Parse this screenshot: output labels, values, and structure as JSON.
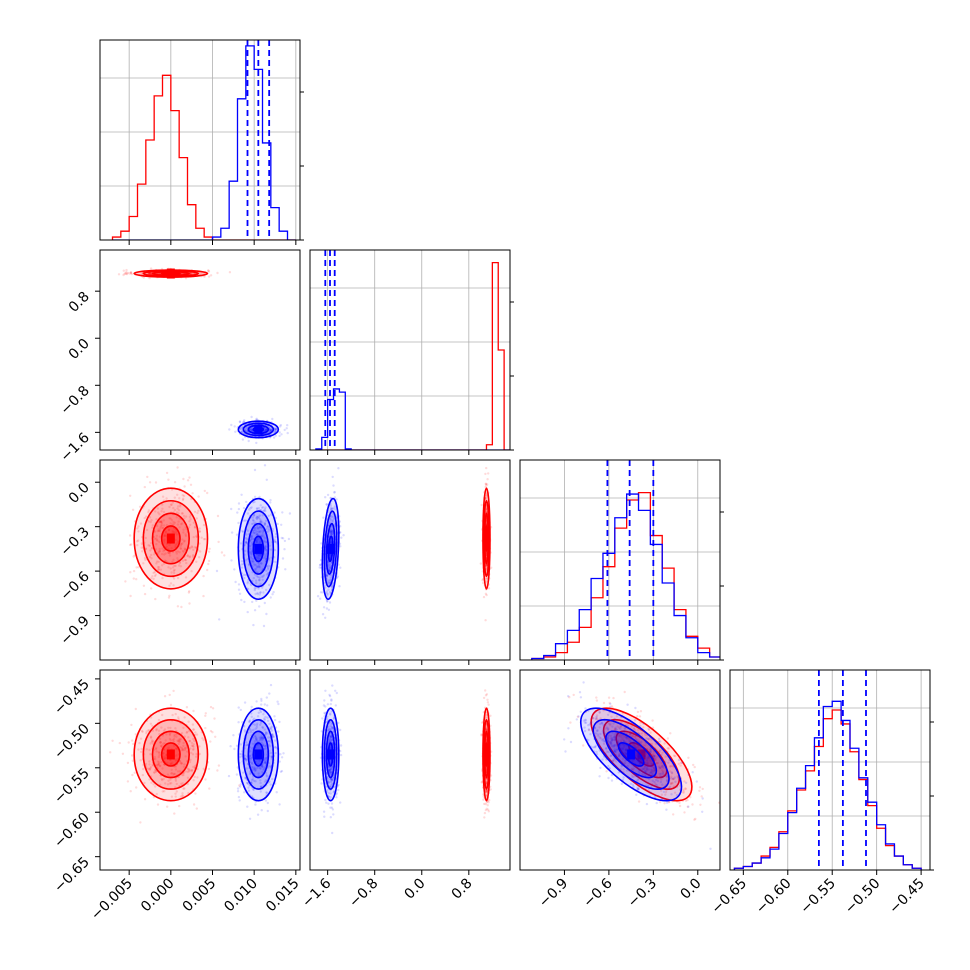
{
  "chart_data": {
    "type": "corner",
    "title": "",
    "colors": {
      "series_a": "#ff0000",
      "series_b": "#0000ff",
      "grid": "#b0b0b0",
      "axes": "#000000"
    },
    "grid": true,
    "parameters": [
      {
        "range": [
          -0.0085,
          0.0155
        ],
        "ticks": [
          "-0.005",
          "0.000",
          "0.005",
          "0.010",
          "0.015"
        ],
        "tick_values": [
          -0.005,
          0.0,
          0.005,
          0.01,
          0.015
        ]
      },
      {
        "range": [
          -1.9,
          1.5
        ],
        "ticks": [
          "-1.6",
          "-0.8",
          "0.0",
          "0.8"
        ],
        "tick_values": [
          -1.6,
          -0.8,
          0.0,
          0.8
        ]
      },
      {
        "range": [
          -1.2,
          0.15
        ],
        "ticks": [
          "-0.9",
          "-0.6",
          "-0.3",
          "0.0"
        ],
        "tick_values": [
          -0.9,
          -0.6,
          -0.3,
          0.0
        ]
      },
      {
        "range": [
          -0.665,
          -0.44
        ],
        "ticks": [
          "-0.65",
          "-0.60",
          "-0.55",
          "-0.50",
          "-0.45"
        ],
        "tick_values": [
          -0.65,
          -0.6,
          -0.55,
          -0.5,
          -0.45
        ]
      }
    ],
    "series": [
      {
        "color_key": "series_a",
        "mean": [
          0.0,
          1.1,
          -0.38,
          -0.535
        ],
        "std": [
          0.0022,
          0.03,
          0.17,
          0.026
        ],
        "corr_23": 0.0,
        "corr_34": -0.7
      },
      {
        "color_key": "series_b",
        "mean": [
          0.0105,
          -1.55,
          -0.45,
          -0.535
        ],
        "std": [
          0.0012,
          0.07,
          0.17,
          0.026
        ],
        "corr_23": 0.3,
        "corr_34": -0.7
      }
    ],
    "quantile_lines": [
      [
        0.0092,
        0.0105,
        0.0118
      ],
      [
        -1.64,
        -1.56,
        -1.48
      ],
      [
        -0.61,
        -0.46,
        -0.3
      ],
      [
        -0.565,
        -0.538,
        -0.512
      ]
    ],
    "histograms": [
      {
        "bins": [
          -0.007,
          -0.006,
          -0.005,
          -0.004,
          -0.003,
          -0.002,
          -0.001,
          0.0,
          0.001,
          0.002,
          0.003,
          0.004,
          0.005,
          0.006,
          0.007,
          0.008,
          0.009,
          0.01,
          0.011,
          0.012,
          0.013,
          0.014,
          0.015
        ],
        "series_a": [
          1,
          3,
          8,
          19,
          34,
          49,
          56,
          44,
          28,
          12,
          4,
          1,
          0,
          0,
          0,
          0,
          0,
          0,
          0,
          0,
          0,
          0
        ],
        "series_b": [
          0,
          0,
          0,
          0,
          0,
          0,
          0,
          0,
          0,
          0,
          0,
          0,
          1,
          4,
          20,
          48,
          66,
          58,
          33,
          11,
          3,
          0
        ],
        "ymax": 68
      },
      {
        "bins": [
          -1.8,
          -1.7,
          -1.6,
          -1.5,
          -1.4,
          -1.3,
          -1.2,
          -1.1,
          -1.0,
          -0.9,
          -0.8,
          -0.7,
          -0.6,
          -0.5,
          -0.4,
          -0.3,
          -0.2,
          -0.1,
          0.0,
          0.1,
          0.2,
          0.3,
          0.4,
          0.5,
          0.6,
          0.7,
          0.8,
          0.9,
          1.0,
          1.1,
          1.2,
          1.3,
          1.4,
          1.5
        ],
        "series_a": [
          0,
          0,
          0,
          0,
          0,
          0,
          0,
          0,
          0,
          0,
          0,
          0,
          0,
          0,
          0,
          0,
          0,
          0,
          0,
          0,
          0,
          0,
          0,
          0,
          0,
          0,
          0,
          0,
          0,
          5,
          178,
          95,
          0
        ],
        "series_b": [
          1,
          12,
          48,
          58,
          55,
          1,
          0,
          0,
          0,
          0,
          0,
          0,
          0,
          0,
          0,
          0,
          0,
          0,
          0,
          0,
          0,
          0,
          0,
          0,
          0,
          0,
          0,
          0,
          0,
          0,
          0,
          0,
          0
        ],
        "ymax": 190
      },
      {
        "bins": [
          -1.12,
          -1.04,
          -0.96,
          -0.88,
          -0.8,
          -0.72,
          -0.64,
          -0.56,
          -0.48,
          -0.4,
          -0.32,
          -0.24,
          -0.16,
          -0.08,
          0.0,
          0.08,
          0.16
        ],
        "series_a": [
          1,
          2,
          5,
          12,
          22,
          42,
          63,
          89,
          108,
          113,
          84,
          62,
          34,
          16,
          8,
          2
        ],
        "series_b": [
          1,
          3,
          11,
          20,
          34,
          55,
          72,
          96,
          112,
          101,
          78,
          52,
          30,
          15,
          5,
          2
        ],
        "ymax": 135
      },
      {
        "bins": [
          -0.66,
          -0.65,
          -0.64,
          -0.63,
          -0.62,
          -0.61,
          -0.6,
          -0.59,
          -0.58,
          -0.57,
          -0.56,
          -0.55,
          -0.54,
          -0.53,
          -0.52,
          -0.51,
          -0.5,
          -0.49,
          -0.48,
          -0.47,
          -0.46,
          -0.45
        ],
        "series_a": [
          1,
          2,
          4,
          8,
          13,
          22,
          34,
          46,
          57,
          71,
          87,
          92,
          84,
          68,
          52,
          37,
          24,
          14,
          8,
          3,
          1
        ],
        "series_b": [
          1,
          2,
          4,
          7,
          12,
          21,
          33,
          47,
          60,
          76,
          94,
          97,
          86,
          70,
          53,
          39,
          26,
          15,
          8,
          3,
          1
        ],
        "ymax": 115
      }
    ]
  }
}
